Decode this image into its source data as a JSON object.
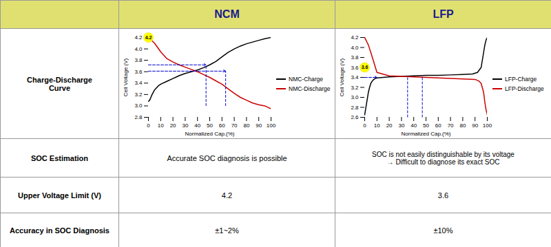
{
  "table": {
    "header_color": "#e0e070",
    "header_text_color": "#1a1a8c",
    "border_color": "#999999",
    "row_labels": [
      "Charge-Discharge\nCurve",
      "SOC Estimation",
      "Upper Voltage Limit (V)",
      "Accuracy in SOC Diagnosis"
    ],
    "cells": [
      [
        "Accurate SOC diagnosis is possible",
        "4.2",
        "±1~2%"
      ],
      [
        "SOC is not easily distinguishable by its voltage\n→ Difficult to diagnose its exact SOC",
        "3.6",
        "±10%"
      ]
    ]
  },
  "chart_data": [
    {
      "type": "line",
      "title": "NCM",
      "xlabel": "Normalized Cap.(%)",
      "ylabel": "Cell Voltage (V)",
      "xlim": [
        0,
        100
      ],
      "ylim": [
        2.8,
        4.2
      ],
      "xticks": [
        0,
        10,
        20,
        30,
        40,
        50,
        60,
        70,
        80,
        90,
        100
      ],
      "yticks": [
        2.8,
        {
          "value": 3.0,
          "label": "3.0"
        },
        3.2,
        3.4,
        3.6,
        3.8,
        {
          "value": 4.0,
          "label": "4.0"
        },
        4.2
      ],
      "grid": false,
      "legend": "right",
      "series": [
        {
          "name": "NMC-Charge",
          "color": "#000000",
          "x": [
            0,
            1,
            2,
            3,
            5,
            8,
            10,
            15,
            20,
            25,
            30,
            35,
            40,
            45,
            50,
            55,
            60,
            65,
            70,
            75,
            80,
            85,
            90,
            95,
            100
          ],
          "values": [
            3.08,
            3.1,
            3.15,
            3.2,
            3.28,
            3.35,
            3.38,
            3.43,
            3.48,
            3.53,
            3.57,
            3.6,
            3.63,
            3.67,
            3.72,
            3.78,
            3.86,
            3.94,
            4.0,
            4.05,
            4.09,
            4.12,
            4.15,
            4.18,
            4.2
          ]
        },
        {
          "name": "NMC-Discharge",
          "color": "#cc0000",
          "x": [
            0,
            5,
            10,
            15,
            20,
            25,
            30,
            35,
            40,
            45,
            50,
            55,
            60,
            65,
            70,
            75,
            80,
            85,
            90,
            95,
            97,
            100
          ],
          "values": [
            4.2,
            4.1,
            3.95,
            3.83,
            3.77,
            3.72,
            3.68,
            3.64,
            3.6,
            3.55,
            3.5,
            3.44,
            3.38,
            3.3,
            3.22,
            3.15,
            3.1,
            3.05,
            3.02,
            3.0,
            2.98,
            2.95
          ]
        }
      ],
      "annotations": [
        {
          "type": "arrow",
          "x": [
            0,
            47
          ],
          "y": [
            3.72,
            3.72
          ],
          "color": "#0000cc",
          "line_style": "dashed"
        },
        {
          "type": "arrow",
          "x": [
            0,
            63
          ],
          "y": [
            3.61,
            3.61
          ],
          "color": "#0000cc",
          "line_style": "dashed"
        },
        {
          "type": "line",
          "x": [
            47,
            47
          ],
          "y": [
            3.0,
            3.72
          ],
          "color": "#0000cc",
          "line_style": "dashed"
        },
        {
          "type": "line",
          "x": [
            63,
            63
          ],
          "y": [
            3.0,
            3.61
          ],
          "color": "#0000cc",
          "line_style": "dashed"
        },
        {
          "type": "marker_text",
          "text": "4.2",
          "x": 0,
          "y": 4.2,
          "color": "yellow"
        }
      ]
    },
    {
      "type": "line",
      "title": "LFP",
      "xlabel": "Normalized Cap.(%)",
      "ylabel": "Cell Voltage (V)",
      "xlim": [
        0,
        100
      ],
      "ylim": [
        2.6,
        4.2
      ],
      "xticks": [
        0,
        10,
        20,
        30,
        40,
        50,
        60,
        70,
        80,
        90,
        100
      ],
      "yticks": [
        2.6,
        2.8,
        {
          "value": 3.0,
          "label": "3.0"
        },
        3.2,
        3.4,
        3.6,
        3.8,
        {
          "value": 4.0,
          "label": "4.0"
        },
        4.2
      ],
      "grid": false,
      "legend": "right",
      "series": [
        {
          "name": "LFP-Charge",
          "color": "#000000",
          "x": [
            0,
            1,
            2,
            3,
            4,
            5,
            6,
            7,
            8,
            10,
            15,
            20,
            30,
            40,
            50,
            60,
            70,
            80,
            88,
            92,
            95,
            97,
            98,
            99,
            100
          ],
          "values": [
            2.65,
            2.8,
            2.95,
            3.1,
            3.2,
            3.28,
            3.32,
            3.35,
            3.37,
            3.39,
            3.4,
            3.41,
            3.42,
            3.43,
            3.44,
            3.44,
            3.45,
            3.46,
            3.47,
            3.5,
            3.6,
            3.9,
            4.05,
            4.15,
            4.2
          ]
        },
        {
          "name": "LFP-Discharge",
          "color": "#cc0000",
          "x": [
            0,
            1,
            2,
            3,
            5,
            10,
            20,
            30,
            40,
            50,
            60,
            70,
            80,
            90,
            93,
            95,
            97,
            98,
            99,
            100
          ],
          "values": [
            4.2,
            4.15,
            4.1,
            4.05,
            3.9,
            3.5,
            3.43,
            3.42,
            3.41,
            3.4,
            3.39,
            3.38,
            3.37,
            3.36,
            3.33,
            3.28,
            3.1,
            2.9,
            2.75,
            2.65
          ]
        }
      ],
      "annotations": [
        {
          "type": "arrow",
          "x": [
            0,
            10
          ],
          "y": [
            3.4,
            3.4
          ],
          "color": "#0000cc",
          "line_style": "dashed"
        },
        {
          "type": "line",
          "x": [
            35,
            35
          ],
          "y": [
            2.6,
            3.4
          ],
          "color": "#0000cc",
          "line_style": "dashed"
        },
        {
          "type": "line",
          "x": [
            47,
            47
          ],
          "y": [
            2.6,
            3.4
          ],
          "color": "#0000cc",
          "line_style": "dashed"
        },
        {
          "type": "marker_text",
          "text": "3.6",
          "x": 0,
          "y": 3.6,
          "color": "yellow"
        }
      ]
    }
  ]
}
